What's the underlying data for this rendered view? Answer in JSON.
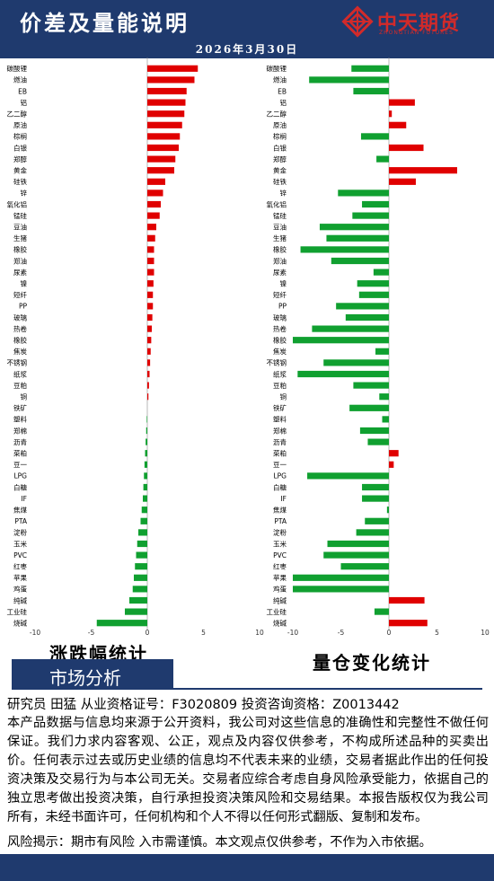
{
  "header": {
    "title": "价差及量能说明",
    "date": "2026年3月30日",
    "logo_cn": "中天期货",
    "logo_en": "ZHONGTIAN FUTURES"
  },
  "colors": {
    "navy": "#1f3a6e",
    "up": "#e00000",
    "down": "#10a030"
  },
  "chart_data": [
    {
      "type": "bar",
      "orientation": "horizontal",
      "caption": "涨跌幅统计",
      "xlim": [
        -10,
        10
      ],
      "xticks": [
        -10,
        -5,
        0,
        5,
        10
      ],
      "categories": [
        "碳酸锂",
        "燃油",
        "EB",
        "铝",
        "乙二醇",
        "原油",
        "棕榈",
        "白银",
        "郑醇",
        "黄金",
        "硅铁",
        "锌",
        "氧化铝",
        "锰硅",
        "豆油",
        "生猪",
        "橡胶",
        "郑油",
        "尿素",
        "镍",
        "短纤",
        "PP",
        "玻璃",
        "热卷",
        "橡胶",
        "焦炭",
        "不锈钢",
        "纸浆",
        "豆粕",
        "铜",
        "铁矿",
        "塑料",
        "郑棉",
        "沥青",
        "菜粕",
        "豆一",
        "LPG",
        "白糖",
        "IF",
        "焦煤",
        "PTA",
        "淀粉",
        "玉米",
        "PVC",
        "红枣",
        "苹果",
        "鸡蛋",
        "纯碱",
        "工业硅",
        "烧碱"
      ],
      "values": [
        4.5,
        4.2,
        3.5,
        3.4,
        3.3,
        3.1,
        2.9,
        2.8,
        2.5,
        2.4,
        1.6,
        1.4,
        1.2,
        1.1,
        0.8,
        0.7,
        0.6,
        0.6,
        0.6,
        0.55,
        0.5,
        0.5,
        0.45,
        0.4,
        0.35,
        0.3,
        0.25,
        0.2,
        0.15,
        0.1,
        0.0,
        -0.05,
        -0.1,
        -0.15,
        -0.2,
        -0.25,
        -0.3,
        -0.35,
        -0.4,
        -0.5,
        -0.6,
        -0.8,
        -0.9,
        -1.0,
        -1.1,
        -1.2,
        -1.3,
        -1.6,
        -2.0,
        -4.5
      ]
    },
    {
      "type": "bar",
      "orientation": "horizontal",
      "caption": "量仓变化统计",
      "xlim": [
        -10,
        10
      ],
      "xticks": [
        -10,
        -5,
        0,
        5,
        10
      ],
      "categories": [
        "碳酸锂",
        "燃油",
        "EB",
        "铝",
        "乙二醇",
        "原油",
        "棕榈",
        "白银",
        "郑醇",
        "黄金",
        "硅铁",
        "锌",
        "氧化铝",
        "锰硅",
        "豆油",
        "生猪",
        "橡胶",
        "郑油",
        "尿素",
        "镍",
        "短纤",
        "PP",
        "玻璃",
        "热卷",
        "橡胶",
        "焦炭",
        "不锈钢",
        "纸浆",
        "豆粕",
        "铜",
        "铁矿",
        "塑料",
        "郑棉",
        "沥青",
        "菜粕",
        "豆一",
        "LPG",
        "白糖",
        "IF",
        "焦煤",
        "PTA",
        "淀粉",
        "玉米",
        "PVC",
        "红枣",
        "苹果",
        "鸡蛋",
        "纯碱",
        "工业硅",
        "烧碱"
      ],
      "values": [
        -3.9,
        -8.3,
        -3.7,
        2.7,
        0.3,
        1.8,
        -2.9,
        3.6,
        -1.3,
        7.1,
        2.8,
        -5.3,
        -2.8,
        -3.8,
        -7.2,
        -6.5,
        -9.2,
        -6.0,
        -1.6,
        -3.3,
        -3.1,
        -5.5,
        -4.5,
        -8.0,
        -10.0,
        -1.4,
        -6.8,
        -9.5,
        -3.7,
        -1.0,
        -4.1,
        -0.7,
        -3.0,
        -2.2,
        1.0,
        0.5,
        -8.5,
        -2.8,
        -2.8,
        -0.2,
        -2.5,
        -3.4,
        -6.4,
        -6.8,
        -5.0,
        -10.0,
        -10.0,
        3.7,
        -1.5,
        4.0
      ]
    }
  ],
  "market": {
    "section": "市场分析",
    "researcher": "研究员 田猛   从业资格证号：F3020809  投资咨询资格：Z0013442",
    "disclaimer": "本产品数据与信息均来源于公开资料，我公司对这些信息的准确性和完整性不做任何保证。我们力求内容客观、公正，观点及内容仅供参考，不构成所述品种的买卖出价。任何表示过去或历史业绩的信息均不代表未来的业绩，交易者据此作出的任何投资决策及交易行为与本公司无关。交易者应综合考虑自身风险承受能力，依据自己的独立思考做出投资决策，自行承担投资决策风险和交易结果。本报告版权仅为我公司所有，未经书面许可，任何机构和个人不得以任何形式翻版、复制和发布。",
    "risk": "风险揭示：期市有风险 入市需谨慎。本文观点仅供参考，不作为入市依据。"
  }
}
